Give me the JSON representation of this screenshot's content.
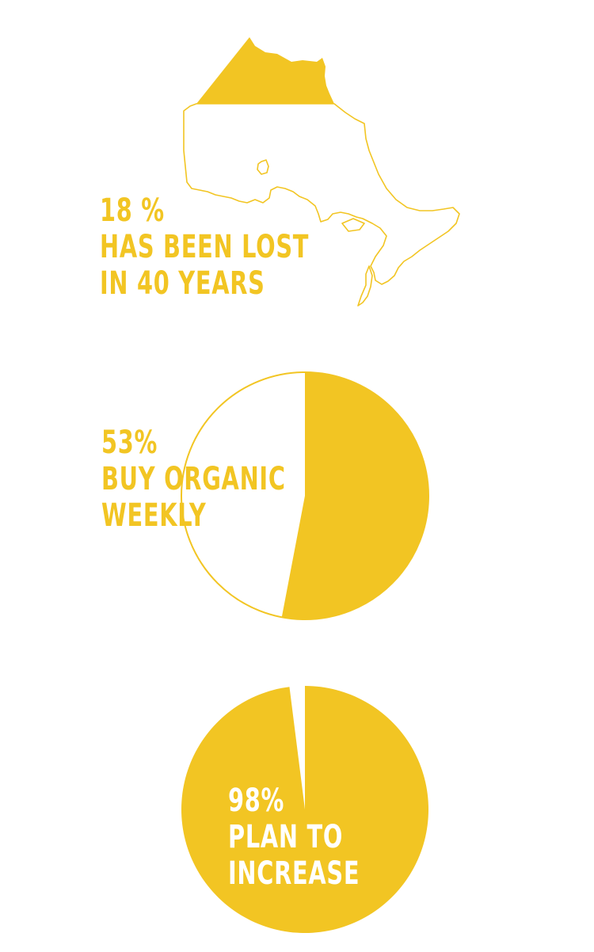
{
  "colors": {
    "accent": "#f2c523",
    "background": "#ffffff"
  },
  "stats": [
    {
      "percent": "18 %",
      "line1": "HAS BEEN LOST",
      "line2": "IN 40 YEARS"
    },
    {
      "percent": "53%",
      "line1": "BUY ORGANIC",
      "line2": "WEEKLY"
    },
    {
      "percent": "98%",
      "line1": "PLAN TO",
      "line2": "INCREASE"
    }
  ],
  "chart_data": [
    {
      "type": "pie",
      "title": "",
      "categories": [
        "Buy organic weekly",
        ""
      ],
      "values": [
        53,
        47
      ]
    },
    {
      "type": "pie",
      "title": "",
      "categories": [
        "Plan to increase",
        ""
      ],
      "values": [
        98,
        2
      ]
    }
  ]
}
